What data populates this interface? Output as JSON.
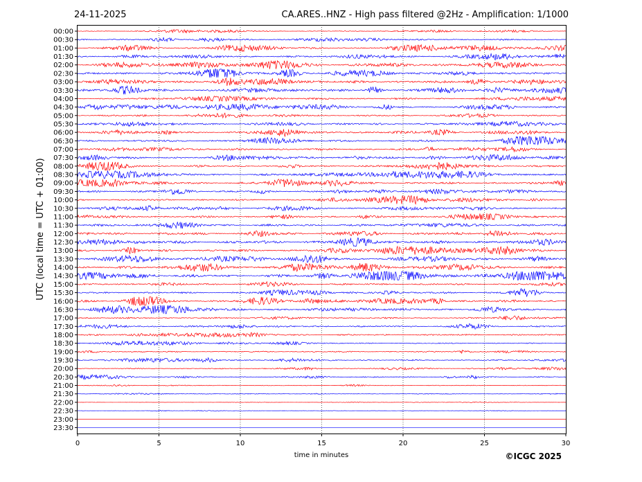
{
  "chart_data": {
    "type": "line",
    "date": "24-11-2025",
    "title": "CA.ARES..HNZ - High pass filtered @2Hz - Amplification: 1/1000",
    "xlabel": "time in minutes",
    "ylabel": "UTC (local time = UTC + 01:00)",
    "copyright": "©ICGC 2025",
    "xlim": [
      0,
      30
    ],
    "x_ticks": [
      "0",
      "5",
      "10",
      "15",
      "20",
      "25",
      "30"
    ],
    "grid": "vertical dotted at every 5 minutes",
    "trace_colors": [
      "#ff0000",
      "#0000ff"
    ],
    "rows": [
      {
        "label": "00:00",
        "level": 0.15
      },
      {
        "label": "00:30",
        "level": 0.3
      },
      {
        "label": "01:00",
        "level": 0.35
      },
      {
        "label": "01:30",
        "level": 0.35
      },
      {
        "label": "02:00",
        "level": 0.35
      },
      {
        "label": "02:30",
        "level": 0.45
      },
      {
        "label": "03:00",
        "level": 0.5
      },
      {
        "label": "03:30",
        "level": 0.45
      },
      {
        "label": "04:00",
        "level": 0.35
      },
      {
        "label": "04:30",
        "level": 0.4
      },
      {
        "label": "05:00",
        "level": 0.3
      },
      {
        "label": "05:30",
        "level": 0.4
      },
      {
        "label": "06:00",
        "level": 0.35
      },
      {
        "label": "06:30",
        "level": 0.4
      },
      {
        "label": "07:00",
        "level": 0.4
      },
      {
        "label": "07:30",
        "level": 0.4
      },
      {
        "label": "08:00",
        "level": 0.4
      },
      {
        "label": "08:30",
        "level": 0.4
      },
      {
        "label": "09:00",
        "level": 0.4
      },
      {
        "label": "09:30",
        "level": 0.4
      },
      {
        "label": "10:00",
        "level": 0.35
      },
      {
        "label": "10:30",
        "level": 0.35
      },
      {
        "label": "11:00",
        "level": 0.4
      },
      {
        "label": "11:30",
        "level": 0.45
      },
      {
        "label": "12:00",
        "level": 0.55
      },
      {
        "label": "12:30",
        "level": 0.6
      },
      {
        "label": "13:00",
        "level": 0.45
      },
      {
        "label": "13:30",
        "level": 0.4
      },
      {
        "label": "14:00",
        "level": 0.5
      },
      {
        "label": "14:30",
        "level": 0.55
      },
      {
        "label": "15:00",
        "level": 0.35
      },
      {
        "label": "15:30",
        "level": 0.35
      },
      {
        "label": "16:00",
        "level": 0.5
      },
      {
        "label": "16:30",
        "level": 0.45
      },
      {
        "label": "17:00",
        "level": 0.3
      },
      {
        "label": "17:30",
        "level": 0.35
      },
      {
        "label": "18:00",
        "level": 0.3
      },
      {
        "label": "18:30",
        "level": 0.2
      },
      {
        "label": "19:00",
        "level": 0.25
      },
      {
        "label": "19:30",
        "level": 0.25
      },
      {
        "label": "20:00",
        "level": 0.2
      },
      {
        "label": "20:30",
        "level": 0.25
      },
      {
        "label": "21:00",
        "level": 0.15
      },
      {
        "label": "21:30",
        "level": 0.08
      },
      {
        "label": "22:00",
        "level": 0.05
      },
      {
        "label": "22:30",
        "level": 0.06
      },
      {
        "label": "23:00",
        "level": 0.0
      },
      {
        "label": "23:30",
        "level": 0.0
      }
    ]
  }
}
